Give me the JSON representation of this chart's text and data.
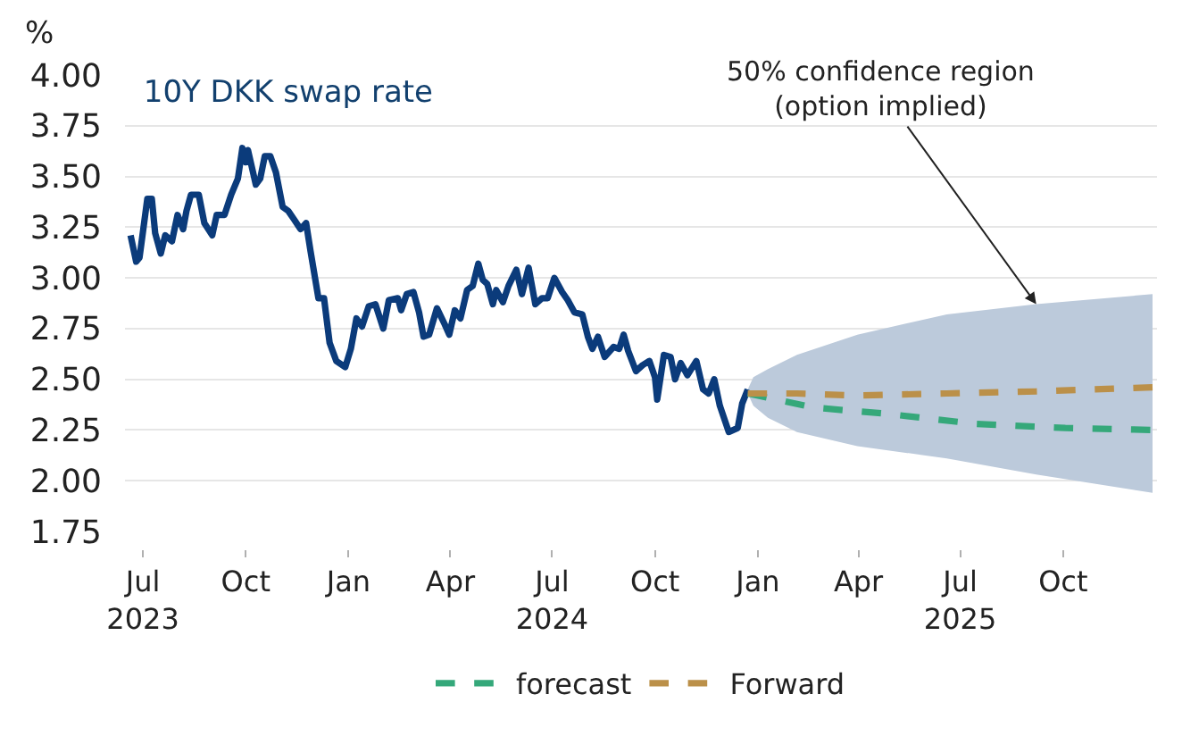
{
  "chart_data": {
    "type": "line",
    "title": "10Y DKK swap rate",
    "ylabel": "%",
    "xlim": [
      "2023-06-15",
      "2025-12-24"
    ],
    "ylim": [
      1.75,
      4.0
    ],
    "xticks": [
      {
        "value": "2023-07-01",
        "label": "Jul\n2023"
      },
      {
        "value": "2023-10-01",
        "label": "Oct"
      },
      {
        "value": "2024-01-01",
        "label": "Jan"
      },
      {
        "value": "2024-04-01",
        "label": "Apr"
      },
      {
        "value": "2024-07-01",
        "label": "Jul\n2024"
      },
      {
        "value": "2024-10-01",
        "label": "Oct"
      },
      {
        "value": "2025-01-01",
        "label": "Jan"
      },
      {
        "value": "2025-04-01",
        "label": "Apr"
      },
      {
        "value": "2025-07-01",
        "label": "Jul\n2025"
      },
      {
        "value": "2025-10-01",
        "label": "Oct"
      }
    ],
    "yticks": [
      {
        "value": 1.75,
        "label": "1.75"
      },
      {
        "value": 2.0,
        "label": "2.00"
      },
      {
        "value": 2.25,
        "label": "2.25"
      },
      {
        "value": 2.5,
        "label": "2.50"
      },
      {
        "value": 2.75,
        "label": "2.75"
      },
      {
        "value": 3.0,
        "label": "3.00"
      },
      {
        "value": 3.25,
        "label": "3.25"
      },
      {
        "value": 3.5,
        "label": "3.50"
      },
      {
        "value": 3.75,
        "label": "3.75"
      },
      {
        "value": 4.0,
        "label": "4.00"
      }
    ],
    "grid": "y",
    "legend": "bottom",
    "annotations": [
      {
        "text": "50% confidence region\n(option implied)",
        "x": "2025-09-07",
        "y": 2.87
      }
    ],
    "series": [
      {
        "color": "#0b3b7b",
        "line_style": "solid",
        "x": [
          "2023-06-20",
          "2023-06-25",
          "2023-06-28",
          "2023-07-05",
          "2023-07-09",
          "2023-07-12",
          "2023-07-17",
          "2023-07-21",
          "2023-07-27",
          "2023-08-01",
          "2023-08-06",
          "2023-08-09",
          "2023-08-13",
          "2023-08-20",
          "2023-08-25",
          "2023-09-01",
          "2023-09-05",
          "2023-09-12",
          "2023-09-18",
          "2023-09-24",
          "2023-09-28",
          "2023-10-01",
          "2023-10-03",
          "2023-10-10",
          "2023-10-14",
          "2023-10-18",
          "2023-10-23",
          "2023-10-28",
          "2023-11-03",
          "2023-11-08",
          "2023-11-13",
          "2023-11-19",
          "2023-11-24",
          "2023-11-28",
          "2023-12-05",
          "2023-12-10",
          "2023-12-15",
          "2023-12-21",
          "2023-12-29",
          "2024-01-03",
          "2024-01-08",
          "2024-01-13",
          "2024-01-19",
          "2024-01-25",
          "2024-02-01",
          "2024-02-06",
          "2024-02-14",
          "2024-02-17",
          "2024-02-22",
          "2024-02-28",
          "2024-03-04",
          "2024-03-08",
          "2024-03-13",
          "2024-03-20",
          "2024-03-27",
          "2024-03-31",
          "2024-04-05",
          "2024-04-10",
          "2024-04-16",
          "2024-04-21",
          "2024-04-26",
          "2024-04-30",
          "2024-05-04",
          "2024-05-09",
          "2024-05-12",
          "2024-05-18",
          "2024-05-23",
          "2024-05-30",
          "2024-06-04",
          "2024-06-10",
          "2024-06-16",
          "2024-06-22",
          "2024-06-27",
          "2024-07-03",
          "2024-07-10",
          "2024-07-15",
          "2024-07-21",
          "2024-07-28",
          "2024-08-02",
          "2024-08-06",
          "2024-08-11",
          "2024-08-17",
          "2024-08-25",
          "2024-08-30",
          "2024-09-03",
          "2024-09-07",
          "2024-09-14",
          "2024-09-20",
          "2024-09-26",
          "2024-10-01",
          "2024-10-03",
          "2024-10-09",
          "2024-10-15",
          "2024-10-19",
          "2024-10-24",
          "2024-10-30",
          "2024-11-07",
          "2024-11-13",
          "2024-11-18",
          "2024-11-23",
          "2024-11-28",
          "2024-12-06",
          "2024-12-14",
          "2024-12-18",
          "2024-12-23"
        ],
        "values": [
          3.21,
          3.08,
          3.1,
          3.39,
          3.39,
          3.22,
          3.12,
          3.21,
          3.18,
          3.31,
          3.24,
          3.33,
          3.41,
          3.41,
          3.27,
          3.21,
          3.31,
          3.31,
          3.41,
          3.49,
          3.64,
          3.57,
          3.63,
          3.46,
          3.49,
          3.6,
          3.6,
          3.52,
          3.35,
          3.33,
          3.29,
          3.24,
          3.27,
          3.13,
          2.9,
          2.9,
          2.68,
          2.59,
          2.56,
          2.65,
          2.8,
          2.76,
          2.86,
          2.87,
          2.75,
          2.89,
          2.9,
          2.84,
          2.92,
          2.93,
          2.83,
          2.71,
          2.72,
          2.85,
          2.77,
          2.72,
          2.84,
          2.8,
          2.94,
          2.96,
          3.07,
          2.99,
          2.97,
          2.87,
          2.94,
          2.88,
          2.96,
          3.04,
          2.92,
          3.05,
          2.87,
          2.9,
          2.9,
          3.0,
          2.93,
          2.89,
          2.83,
          2.82,
          2.71,
          2.65,
          2.71,
          2.61,
          2.66,
          2.65,
          2.72,
          2.64,
          2.54,
          2.57,
          2.59,
          2.51,
          2.4,
          2.62,
          2.61,
          2.5,
          2.58,
          2.52,
          2.59,
          2.45,
          2.43,
          2.5,
          2.37,
          2.24,
          2.26,
          2.38,
          2.45
        ]
      },
      {
        "name": "forecast",
        "color": "#35a87a",
        "line_style": "dashed",
        "x": [
          "2024-12-23",
          "2025-02-21",
          "2025-04-26",
          "2025-07-15",
          "2025-10-03",
          "2025-12-20"
        ],
        "values": [
          2.43,
          2.36,
          2.33,
          2.28,
          2.26,
          2.25
        ]
      },
      {
        "name": "Forward",
        "color": "#bb9049",
        "line_style": "dashed",
        "x": [
          "2024-12-23",
          "2024-12-28",
          "2025-01-10",
          "2025-02-05",
          "2025-03-31",
          "2025-06-19",
          "2025-09-07",
          "2025-12-20"
        ],
        "values": [
          2.43,
          2.43,
          2.43,
          2.43,
          2.42,
          2.43,
          2.44,
          2.46
        ],
        "upper": [
          2.45,
          2.51,
          2.55,
          2.62,
          2.72,
          2.82,
          2.87,
          2.92
        ],
        "lower": [
          2.43,
          2.37,
          2.31,
          2.24,
          2.17,
          2.11,
          2.03,
          1.94
        ]
      }
    ]
  }
}
